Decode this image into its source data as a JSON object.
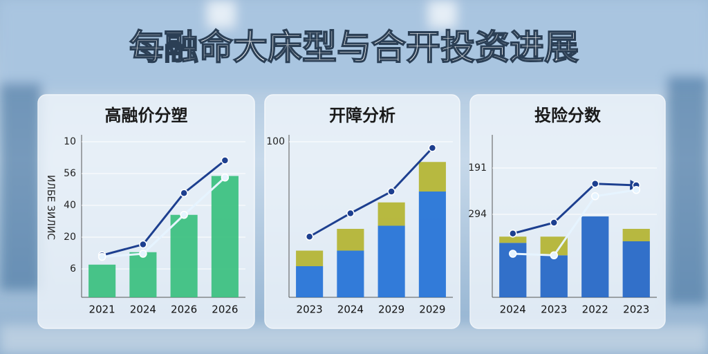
{
  "title": "每融命大床型与合开投资进展",
  "chart_data": [
    {
      "type": "bar",
      "title": "高融价分塑",
      "y_axis_title": "ИЛБЕ ЗИЛИС",
      "y_axis_labels": [
        "10",
        "56",
        "40",
        "20",
        "6"
      ],
      "categories": [
        "2021",
        "2024",
        "2026",
        "2026"
      ],
      "ylim": [
        0,
        100
      ],
      "stacked": true,
      "series": [
        {
          "type": "bar",
          "color": "#36bf7c",
          "values": [
            21,
            29,
            53,
            78
          ]
        },
        {
          "type": "line",
          "color": "#1d3f8f",
          "values": [
            27,
            34,
            67,
            88
          ]
        },
        {
          "type": "line",
          "color": "#e6f4ff",
          "values": [
            26,
            28,
            53,
            77
          ]
        }
      ]
    },
    {
      "type": "bar",
      "title": "开障分析",
      "categories": [
        "2023",
        "2024",
        "2029",
        "2029"
      ],
      "ylim": [
        0,
        100
      ],
      "yticks": [
        100
      ],
      "stacked": true,
      "series": [
        {
          "type": "bar",
          "color": "#1f6fd6",
          "values": [
            20,
            30,
            46,
            68
          ]
        },
        {
          "type": "bar",
          "color": "#b3b32c",
          "values": [
            10,
            14,
            15,
            19
          ]
        },
        {
          "type": "line",
          "color": "#1d3f8f",
          "values": [
            39,
            54,
            68,
            96
          ]
        }
      ]
    },
    {
      "type": "bar",
      "title": "投险分数",
      "y_axis_labels": [
        "191",
        "294"
      ],
      "categories": [
        "2024",
        "2023",
        "2022",
        "2023"
      ],
      "ylim": [
        0,
        100
      ],
      "stacked": true,
      "series": [
        {
          "type": "bar",
          "color": "#1f63c4",
          "values": [
            35,
            27,
            52,
            36
          ]
        },
        {
          "type": "bar",
          "color": "#b3b32c",
          "values": [
            4,
            12,
            0,
            8
          ]
        },
        {
          "type": "line",
          "color": "#1d3f8f",
          "values": [
            41,
            48,
            73,
            72
          ],
          "arrow": true
        },
        {
          "type": "line",
          "color": "#e6f4ff",
          "values": [
            28,
            27,
            65,
            69
          ]
        }
      ]
    }
  ]
}
